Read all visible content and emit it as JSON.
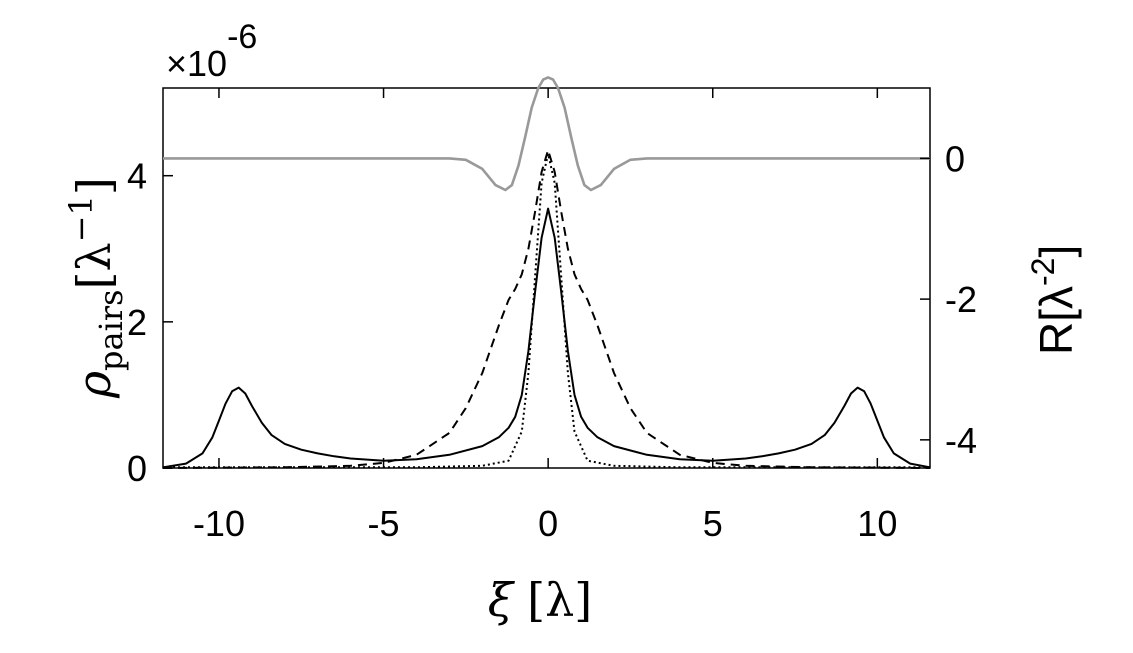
{
  "chart_data": {
    "type": "line",
    "title": "",
    "multiplier_label": {
      "prefix": "×10",
      "exponent": "-6"
    },
    "xlabel": {
      "symbol": "ξ",
      "unit": "[λ]"
    },
    "ylabel": {
      "symbol": "ρ",
      "subscript": "pairs",
      "unit_open": "[λ",
      "unit_sup": "−1",
      "unit_close": "]"
    },
    "y2label": {
      "symbol": "R[λ",
      "unit_sup": "-2",
      "unit_close": "]"
    },
    "xlim": [
      -11.7,
      11.6
    ],
    "ylim": [
      0,
      5.2
    ],
    "y2lim": [
      -4.4,
      1.0
    ],
    "xticks": [
      -10,
      -5,
      0,
      5,
      10
    ],
    "xtick_labels": [
      "-10",
      "-5",
      "0",
      "5",
      "10"
    ],
    "yticks": [
      0,
      2,
      4
    ],
    "ytick_labels": [
      "0",
      "2",
      "4"
    ],
    "y2ticks": [
      -4,
      -2,
      0
    ],
    "y2tick_labels": [
      "-4",
      "-2",
      "0"
    ],
    "grid": false,
    "series": [
      {
        "axis": "left",
        "color": "#000000",
        "style": "solid",
        "x": [
          -11.7,
          -11.0,
          -10.5,
          -10.2,
          -10.0,
          -9.8,
          -9.6,
          -9.4,
          -9.2,
          -9.0,
          -8.7,
          -8.4,
          -8.0,
          -7.5,
          -7.0,
          -6.5,
          -6.0,
          -5.0,
          -4.0,
          -3.0,
          -2.0,
          -1.5,
          -1.2,
          -1.0,
          -0.8,
          -0.6,
          -0.4,
          -0.2,
          0.0,
          0.2,
          0.4,
          0.6,
          0.8,
          1.0,
          1.2,
          1.5,
          2.0,
          3.0,
          4.0,
          5.0,
          6.0,
          6.5,
          7.0,
          7.5,
          8.0,
          8.4,
          8.7,
          9.0,
          9.2,
          9.4,
          9.6,
          9.8,
          10.0,
          10.2,
          10.5,
          11.0,
          11.6
        ],
        "y": [
          0.01,
          0.06,
          0.2,
          0.42,
          0.65,
          0.88,
          1.05,
          1.1,
          1.02,
          0.85,
          0.62,
          0.45,
          0.33,
          0.25,
          0.2,
          0.16,
          0.13,
          0.1,
          0.12,
          0.18,
          0.3,
          0.42,
          0.55,
          0.7,
          1.0,
          1.6,
          2.4,
          3.15,
          3.55,
          3.15,
          2.4,
          1.6,
          1.0,
          0.7,
          0.55,
          0.42,
          0.3,
          0.18,
          0.12,
          0.1,
          0.13,
          0.16,
          0.2,
          0.25,
          0.33,
          0.45,
          0.62,
          0.85,
          1.02,
          1.1,
          1.05,
          0.88,
          0.65,
          0.42,
          0.2,
          0.06,
          0.01
        ]
      },
      {
        "axis": "left",
        "color": "#000000",
        "style": "dashed",
        "x": [
          -11.7,
          -8.0,
          -6.0,
          -5.0,
          -4.0,
          -3.0,
          -2.5,
          -2.0,
          -1.5,
          -1.2,
          -1.0,
          -0.8,
          -0.6,
          -0.4,
          -0.2,
          0.0,
          0.2,
          0.4,
          0.6,
          0.8,
          1.0,
          1.2,
          1.5,
          2.0,
          2.5,
          3.0,
          4.0,
          5.0,
          6.0,
          8.0,
          11.6
        ],
        "y": [
          0.0,
          0.01,
          0.03,
          0.07,
          0.18,
          0.48,
          0.82,
          1.3,
          1.95,
          2.3,
          2.45,
          2.65,
          3.0,
          3.5,
          4.05,
          4.35,
          4.05,
          3.5,
          3.0,
          2.65,
          2.45,
          2.3,
          1.95,
          1.3,
          0.82,
          0.48,
          0.18,
          0.07,
          0.03,
          0.01,
          0.0
        ]
      },
      {
        "axis": "left",
        "color": "#000000",
        "style": "dotted",
        "x": [
          -11.7,
          -4.0,
          -2.0,
          -1.2,
          -0.8,
          -0.6,
          -0.4,
          -0.2,
          0.0,
          0.2,
          0.4,
          0.6,
          0.8,
          1.2,
          2.0,
          4.0,
          11.6
        ],
        "y": [
          0.01,
          0.01,
          0.03,
          0.1,
          0.5,
          1.3,
          2.6,
          3.9,
          4.3,
          3.9,
          2.6,
          1.3,
          0.5,
          0.1,
          0.03,
          0.01,
          0.01
        ]
      },
      {
        "axis": "right",
        "color": "#999999",
        "style": "solid",
        "x": [
          -11.7,
          -3.0,
          -2.5,
          -2.0,
          -1.6,
          -1.3,
          -1.1,
          -0.9,
          -0.7,
          -0.5,
          -0.3,
          -0.15,
          0.0,
          0.15,
          0.3,
          0.5,
          0.7,
          0.9,
          1.1,
          1.3,
          1.6,
          2.0,
          2.5,
          3.0,
          11.6
        ],
        "y": [
          0.0,
          0.0,
          -0.02,
          -0.15,
          -0.38,
          -0.45,
          -0.38,
          -0.1,
          0.3,
          0.72,
          1.0,
          1.12,
          1.15,
          1.12,
          1.0,
          0.72,
          0.3,
          -0.1,
          -0.38,
          -0.45,
          -0.38,
          -0.15,
          -0.02,
          0.0,
          0.0
        ]
      }
    ]
  }
}
